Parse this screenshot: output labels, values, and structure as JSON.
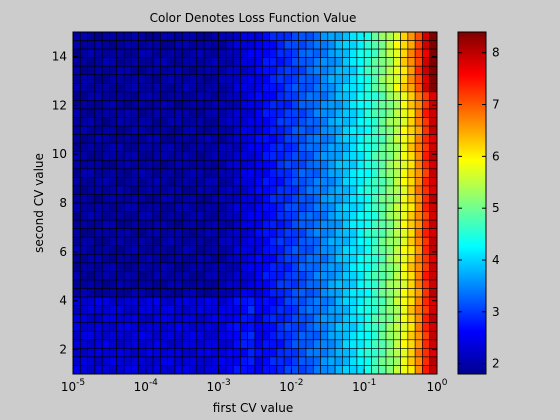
{
  "chart_data": {
    "type": "heatmap",
    "title": "Color Denotes Loss Function Value",
    "xlabel": "first CV value",
    "ylabel": "second CV value",
    "x_scale": "log",
    "x_range": [
      1e-05,
      1
    ],
    "y_range": [
      1,
      15
    ],
    "x_ticks": [
      {
        "value": 1e-05,
        "base": "10",
        "exp": "-5"
      },
      {
        "value": 0.0001,
        "base": "10",
        "exp": "-4"
      },
      {
        "value": 0.001,
        "base": "10",
        "exp": "-3"
      },
      {
        "value": 0.01,
        "base": "10",
        "exp": "-2"
      },
      {
        "value": 0.1,
        "base": "10",
        "exp": "-1"
      },
      {
        "value": 1,
        "base": "10",
        "exp": "0"
      }
    ],
    "y_ticks": [
      2,
      4,
      6,
      8,
      10,
      12,
      14
    ],
    "colorbar": {
      "range": [
        1.8,
        8.4
      ],
      "ticks": [
        2,
        3,
        4,
        5,
        6,
        7,
        8
      ],
      "colormap": "jet"
    },
    "grid_size": {
      "cols": 50,
      "rows": 40
    },
    "profile": {
      "log10_x": [
        -5,
        -3.0,
        -2.5,
        -2.0,
        -1.6,
        -1.3,
        -1.0,
        -0.7,
        -0.5,
        -0.3,
        -0.15,
        0
      ],
      "loss": [
        2.0,
        2.05,
        2.5,
        3.0,
        3.4,
        3.8,
        4.3,
        5.0,
        5.6,
        6.4,
        7.3,
        8.2
      ]
    }
  }
}
